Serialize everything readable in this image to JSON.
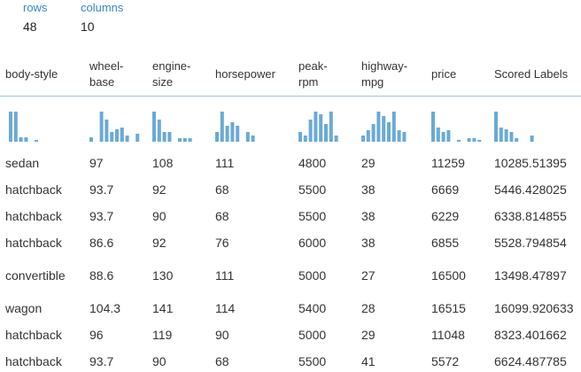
{
  "summary": {
    "rows_label": "rows",
    "rows_value": "48",
    "columns_label": "columns",
    "columns_value": "10"
  },
  "columns": [
    {
      "key": "body_style",
      "header": "body-style"
    },
    {
      "key": "wheel_base",
      "header": "wheel-\nbase"
    },
    {
      "key": "engine_size",
      "header": "engine-\nsize"
    },
    {
      "key": "horsepower",
      "header": "horsepower"
    },
    {
      "key": "peak_rpm",
      "header": "peak-\nrpm"
    },
    {
      "key": "highway_mpg",
      "header": "highway-\nmpg"
    },
    {
      "key": "price",
      "header": "price"
    },
    {
      "key": "scored_labels",
      "header": "Scored Labels"
    }
  ],
  "histograms": [
    [
      0.95,
      0.95,
      0.15,
      0.15,
      0,
      0.05
    ],
    [
      0.15,
      0,
      0.95,
      0.7,
      0.3,
      0.4,
      0.45,
      0.2,
      0,
      0.25
    ],
    [
      0.95,
      0.7,
      0.3,
      0.3,
      0,
      0.1,
      0.1,
      0.1
    ],
    [
      0.3,
      0.95,
      0.5,
      0.6,
      0.5,
      0,
      0.3,
      0.2
    ],
    [
      0.3,
      0.2,
      0.7,
      0.95,
      0.85,
      0.55,
      0.95,
      0.2
    ],
    [
      0.2,
      0.35,
      0.55,
      0.95,
      0.8,
      0.6,
      0.95,
      0.35,
      0.3
    ],
    [
      0.95,
      0.45,
      0.3,
      0.35,
      0,
      0.05,
      0,
      0.1,
      0.1,
      0.05
    ],
    [
      0.95,
      0.45,
      0.4,
      0.3,
      0.1,
      0,
      0,
      0.2
    ]
  ],
  "rows": [
    {
      "body_style": "sedan",
      "wheel_base": "97",
      "engine_size": "108",
      "horsepower": "111",
      "peak_rpm": "4800",
      "highway_mpg": "29",
      "price": "11259",
      "scored_labels": "10285.51395"
    },
    {
      "body_style": "hatchback",
      "wheel_base": "93.7",
      "engine_size": "92",
      "horsepower": "68",
      "peak_rpm": "5500",
      "highway_mpg": "38",
      "price": "6669",
      "scored_labels": "5446.428025"
    },
    {
      "body_style": "hatchback",
      "wheel_base": "93.7",
      "engine_size": "90",
      "horsepower": "68",
      "peak_rpm": "5500",
      "highway_mpg": "38",
      "price": "6229",
      "scored_labels": "6338.814855"
    },
    {
      "body_style": "hatchback",
      "wheel_base": "86.6",
      "engine_size": "92",
      "horsepower": "76",
      "peak_rpm": "6000",
      "highway_mpg": "38",
      "price": "6855",
      "scored_labels": "5528.794854"
    },
    {
      "body_style": "convertible",
      "wheel_base": "88.6",
      "engine_size": "130",
      "horsepower": "111",
      "peak_rpm": "5000",
      "highway_mpg": "27",
      "price": "16500",
      "scored_labels": "13498.47897"
    },
    {
      "body_style": "wagon",
      "wheel_base": "104.3",
      "engine_size": "141",
      "horsepower": "114",
      "peak_rpm": "5400",
      "highway_mpg": "28",
      "price": "16515",
      "scored_labels": "16099.920633"
    },
    {
      "body_style": "hatchback",
      "wheel_base": "96",
      "engine_size": "119",
      "horsepower": "90",
      "peak_rpm": "5000",
      "highway_mpg": "29",
      "price": "11048",
      "scored_labels": "8323.401662"
    },
    {
      "body_style": "hatchback",
      "wheel_base": "93.7",
      "engine_size": "90",
      "horsepower": "68",
      "peak_rpm": "5500",
      "highway_mpg": "41",
      "price": "5572",
      "scored_labels": "6624.487785"
    }
  ],
  "colors": {
    "accent": "#3a86c8",
    "histogram_bar": "#6aaad6",
    "header_rule": "#9cc6e3"
  }
}
